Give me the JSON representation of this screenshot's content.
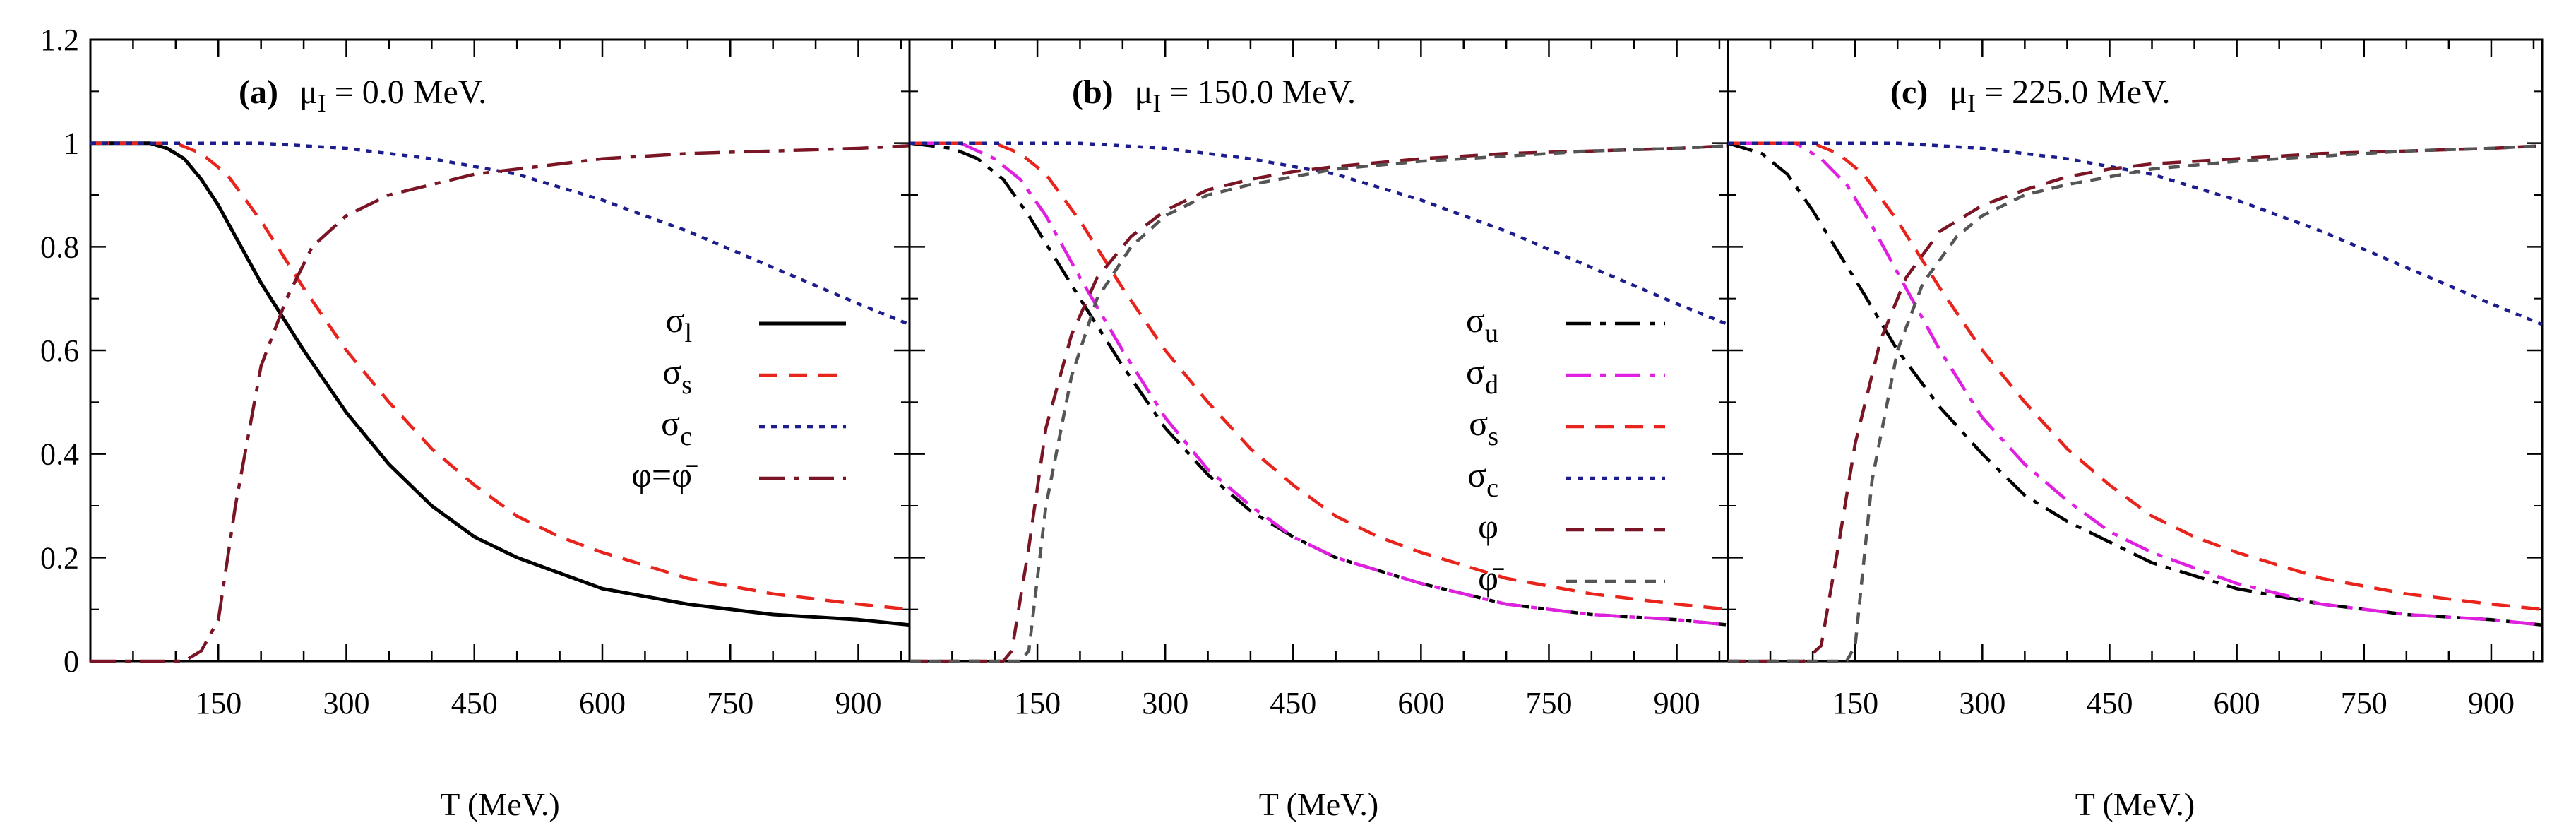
{
  "chart_data": [
    {
      "type": "line",
      "title": "(a)  μI = 0.0 MeV.",
      "title_parts": {
        "tag": "(a)",
        "mu": "μ",
        "sub": "I",
        "value": " = 0.0 MeV."
      },
      "xlabel": "T (MeV.)",
      "ylabel": "",
      "xlim": [
        0,
        960
      ],
      "ylim": [
        0,
        1.2
      ],
      "xticks": [
        "150",
        "300",
        "450",
        "600",
        "750",
        "900"
      ],
      "yticks": [
        "0",
        "0.2",
        "0.4",
        "0.6",
        "0.8",
        "1",
        "1.2"
      ],
      "legend_position": "middle-right",
      "series": [
        {
          "name": "σl",
          "label_main": "σ",
          "label_sub": "l",
          "color": "#000000",
          "dash": "solid",
          "x": [
            0,
            70,
            90,
            110,
            130,
            150,
            170,
            200,
            250,
            300,
            350,
            400,
            450,
            500,
            550,
            600,
            700,
            800,
            900,
            960
          ],
          "y": [
            1.0,
            1.0,
            0.99,
            0.97,
            0.93,
            0.88,
            0.82,
            0.73,
            0.6,
            0.48,
            0.38,
            0.3,
            0.24,
            0.2,
            0.17,
            0.14,
            0.11,
            0.09,
            0.08,
            0.07
          ]
        },
        {
          "name": "σs",
          "label_main": "σ",
          "label_sub": "s",
          "color": "#e8241c",
          "dash": "long",
          "x": [
            0,
            100,
            130,
            160,
            200,
            250,
            300,
            350,
            400,
            450,
            500,
            550,
            600,
            700,
            800,
            900,
            960
          ],
          "y": [
            1.0,
            1.0,
            0.98,
            0.94,
            0.85,
            0.72,
            0.6,
            0.5,
            0.41,
            0.34,
            0.28,
            0.24,
            0.21,
            0.16,
            0.13,
            0.11,
            0.1
          ]
        },
        {
          "name": "σc",
          "label_main": "σ",
          "label_sub": "c",
          "color": "#1c1c8c",
          "dash": "dot",
          "x": [
            0,
            200,
            300,
            400,
            500,
            600,
            700,
            800,
            900,
            960
          ],
          "y": [
            1.0,
            1.0,
            0.99,
            0.97,
            0.94,
            0.89,
            0.83,
            0.76,
            0.69,
            0.65
          ]
        },
        {
          "name": "φ=φ̄",
          "label_main": "φ=φ̄",
          "label_sub": "",
          "color": "#7a1525",
          "dash": "dashdot",
          "x": [
            0,
            110,
            130,
            150,
            170,
            200,
            230,
            260,
            300,
            350,
            400,
            450,
            500,
            600,
            700,
            800,
            900,
            960
          ],
          "y": [
            0.0,
            0.0,
            0.02,
            0.08,
            0.3,
            0.57,
            0.7,
            0.8,
            0.86,
            0.9,
            0.92,
            0.94,
            0.95,
            0.97,
            0.98,
            0.985,
            0.99,
            0.995
          ]
        }
      ]
    },
    {
      "type": "line",
      "title": "(b)  μI = 150.0 MeV.",
      "title_parts": {
        "tag": "(b)",
        "mu": "μ",
        "sub": "I",
        "value": " = 150.0 MeV."
      },
      "xlabel": "T (MeV.)",
      "ylabel": "",
      "xlim": [
        0,
        960
      ],
      "ylim": [
        0,
        1.2
      ],
      "xticks": [
        "150",
        "300",
        "450",
        "600",
        "750",
        "900"
      ],
      "yticks": [
        "0",
        "0.2",
        "0.4",
        "0.6",
        "0.8",
        "1",
        "1.2"
      ],
      "legend_position": "middle-right",
      "series": [
        {
          "name": "σu",
          "label_main": "σ",
          "label_sub": "u",
          "color": "#000000",
          "dash": "dashdot",
          "x": [
            0,
            50,
            80,
            110,
            140,
            170,
            200,
            250,
            300,
            350,
            400,
            450,
            500,
            600,
            700,
            800,
            900,
            960
          ],
          "y": [
            1.0,
            0.99,
            0.97,
            0.93,
            0.86,
            0.78,
            0.7,
            0.57,
            0.45,
            0.36,
            0.29,
            0.24,
            0.2,
            0.15,
            0.11,
            0.09,
            0.08,
            0.07
          ]
        },
        {
          "name": "σd",
          "label_main": "σ",
          "label_sub": "d",
          "color": "#e020e0",
          "dash": "dashdot",
          "x": [
            0,
            60,
            100,
            130,
            160,
            200,
            250,
            300,
            350,
            400,
            450,
            500,
            600,
            700,
            800,
            900,
            960
          ],
          "y": [
            1.0,
            1.0,
            0.97,
            0.93,
            0.86,
            0.74,
            0.6,
            0.47,
            0.37,
            0.3,
            0.24,
            0.2,
            0.15,
            0.11,
            0.09,
            0.08,
            0.07
          ]
        },
        {
          "name": "σs",
          "label_main": "σ",
          "label_sub": "s",
          "color": "#e8241c",
          "dash": "long",
          "x": [
            0,
            100,
            130,
            160,
            200,
            250,
            300,
            350,
            400,
            450,
            500,
            550,
            600,
            700,
            800,
            900,
            960
          ],
          "y": [
            1.0,
            1.0,
            0.98,
            0.94,
            0.85,
            0.72,
            0.6,
            0.5,
            0.41,
            0.34,
            0.28,
            0.24,
            0.21,
            0.16,
            0.13,
            0.11,
            0.1
          ]
        },
        {
          "name": "σc",
          "label_main": "σ",
          "label_sub": "c",
          "color": "#1c1c8c",
          "dash": "dot",
          "x": [
            0,
            200,
            300,
            400,
            500,
            600,
            700,
            800,
            900,
            960
          ],
          "y": [
            1.0,
            1.0,
            0.99,
            0.97,
            0.94,
            0.89,
            0.83,
            0.76,
            0.69,
            0.65
          ]
        },
        {
          "name": "φ",
          "label_main": "φ",
          "label_sub": "",
          "color": "#7a1525",
          "dash": "long",
          "x": [
            0,
            110,
            120,
            140,
            160,
            190,
            220,
            260,
            300,
            350,
            400,
            450,
            500,
            600,
            700,
            800,
            900,
            960
          ],
          "y": [
            0.0,
            0.0,
            0.02,
            0.22,
            0.45,
            0.63,
            0.74,
            0.82,
            0.87,
            0.91,
            0.93,
            0.945,
            0.955,
            0.97,
            0.98,
            0.985,
            0.99,
            0.995
          ]
        },
        {
          "name": "φ̄",
          "label_main": "φ̄",
          "label_sub": "",
          "color": "#555555",
          "dash": "medium",
          "x": [
            0,
            130,
            140,
            160,
            190,
            220,
            260,
            300,
            350,
            400,
            450,
            500,
            600,
            700,
            800,
            900,
            960
          ],
          "y": [
            0.0,
            0.0,
            0.02,
            0.3,
            0.55,
            0.7,
            0.8,
            0.86,
            0.9,
            0.92,
            0.935,
            0.95,
            0.965,
            0.975,
            0.985,
            0.99,
            0.995
          ]
        }
      ]
    },
    {
      "type": "line",
      "title": "(c)  μI = 225.0 MeV.",
      "title_parts": {
        "tag": "(c)",
        "mu": "μ",
        "sub": "I",
        "value": " = 225.0 MeV."
      },
      "xlabel": "T (MeV.)",
      "ylabel": "",
      "xlim": [
        0,
        960
      ],
      "ylim": [
        0,
        1.2
      ],
      "xticks": [
        "150",
        "300",
        "450",
        "600",
        "750",
        "900"
      ],
      "yticks": [
        "0",
        "0.2",
        "0.4",
        "0.6",
        "0.8",
        "1",
        "1.2"
      ],
      "legend_position": "none",
      "series": [
        {
          "name": "σu",
          "color": "#000000",
          "dash": "dashdot",
          "x": [
            0,
            40,
            70,
            100,
            130,
            160,
            200,
            250,
            300,
            350,
            400,
            450,
            500,
            600,
            700,
            800,
            900,
            960
          ],
          "y": [
            1.0,
            0.98,
            0.94,
            0.87,
            0.79,
            0.71,
            0.6,
            0.49,
            0.4,
            0.32,
            0.27,
            0.23,
            0.19,
            0.14,
            0.11,
            0.09,
            0.08,
            0.07
          ]
        },
        {
          "name": "σd",
          "color": "#e020e0",
          "dash": "dashdot",
          "x": [
            0,
            80,
            110,
            140,
            170,
            200,
            250,
            300,
            350,
            400,
            450,
            500,
            600,
            700,
            800,
            900,
            960
          ],
          "y": [
            1.0,
            1.0,
            0.97,
            0.92,
            0.84,
            0.75,
            0.6,
            0.47,
            0.38,
            0.31,
            0.25,
            0.21,
            0.15,
            0.11,
            0.09,
            0.08,
            0.07
          ]
        },
        {
          "name": "σs",
          "color": "#e8241c",
          "dash": "long",
          "x": [
            0,
            100,
            130,
            160,
            200,
            250,
            300,
            350,
            400,
            450,
            500,
            550,
            600,
            700,
            800,
            900,
            960
          ],
          "y": [
            1.0,
            1.0,
            0.98,
            0.94,
            0.85,
            0.72,
            0.6,
            0.5,
            0.41,
            0.34,
            0.28,
            0.24,
            0.21,
            0.16,
            0.13,
            0.11,
            0.1
          ]
        },
        {
          "name": "σc",
          "color": "#1c1c8c",
          "dash": "dot",
          "x": [
            0,
            200,
            300,
            400,
            500,
            600,
            700,
            800,
            900,
            960
          ],
          "y": [
            1.0,
            1.0,
            0.99,
            0.97,
            0.94,
            0.89,
            0.83,
            0.76,
            0.69,
            0.65
          ]
        },
        {
          "name": "φ",
          "color": "#7a1525",
          "dash": "long",
          "x": [
            0,
            90,
            110,
            130,
            150,
            180,
            210,
            250,
            300,
            350,
            400,
            450,
            500,
            600,
            700,
            800,
            900,
            960
          ],
          "y": [
            0.0,
            0.0,
            0.03,
            0.22,
            0.42,
            0.62,
            0.74,
            0.83,
            0.88,
            0.91,
            0.935,
            0.95,
            0.96,
            0.97,
            0.98,
            0.985,
            0.99,
            0.995
          ]
        },
        {
          "name": "φ̄",
          "color": "#555555",
          "dash": "medium",
          "x": [
            0,
            140,
            150,
            170,
            200,
            230,
            270,
            300,
            350,
            400,
            450,
            500,
            600,
            700,
            800,
            900,
            960
          ],
          "y": [
            0.0,
            0.0,
            0.03,
            0.35,
            0.6,
            0.73,
            0.82,
            0.86,
            0.9,
            0.92,
            0.935,
            0.95,
            0.965,
            0.975,
            0.985,
            0.99,
            0.995
          ]
        }
      ]
    }
  ]
}
